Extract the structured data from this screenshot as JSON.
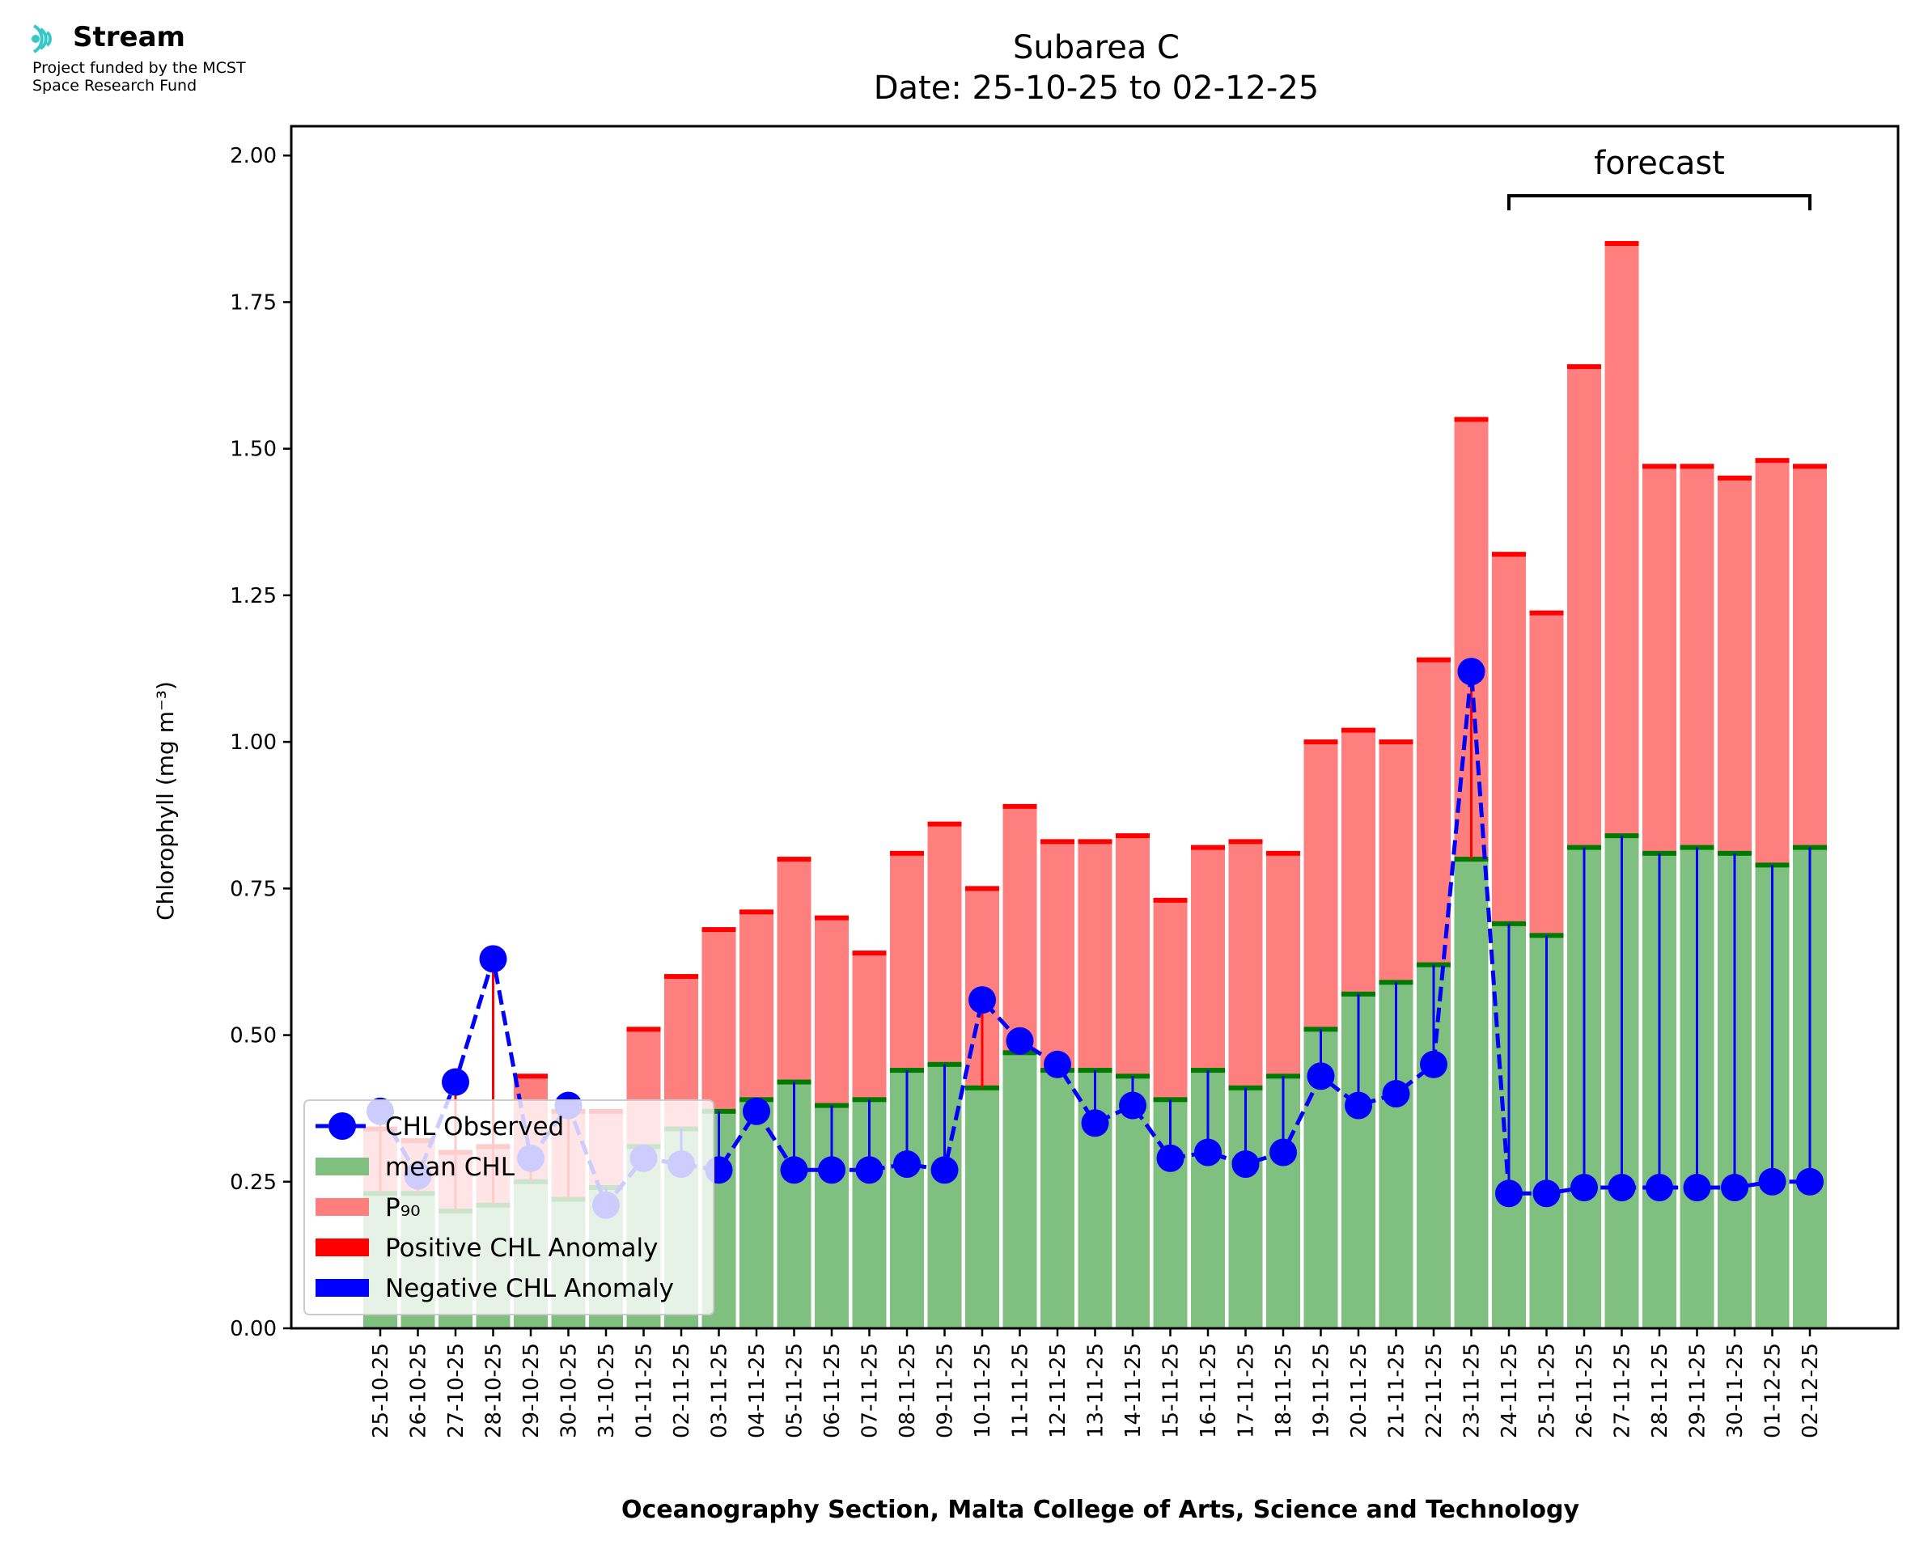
{
  "logo": {
    "brand": "Stream",
    "line1": "Project funded by the MCST",
    "line2": "Space Research Fund"
  },
  "chart_data": {
    "type": "bar",
    "title": "Subarea C",
    "subtitle": "Date: 25-10-25 to 02-12-25",
    "xlabel": "Oceanography Section, Malta College of Arts, Science and Technology",
    "ylabel": "Chlorophyll (mg m⁻³)",
    "ylim": [
      0,
      2.05
    ],
    "yticks": [
      0.0,
      0.25,
      0.5,
      0.75,
      1.0,
      1.25,
      1.5,
      1.75,
      2.0
    ],
    "ytick_labels": [
      "0.00",
      "0.25",
      "0.50",
      "0.75",
      "1.00",
      "1.25",
      "1.50",
      "1.75",
      "2.00"
    ],
    "grid": false,
    "legend_position": "lower-left",
    "annotation": {
      "text": "forecast",
      "from": "24-11-25",
      "to": "02-12-25"
    },
    "categories": [
      "25-10-25",
      "26-10-25",
      "27-10-25",
      "28-10-25",
      "29-10-25",
      "30-10-25",
      "31-10-25",
      "01-11-25",
      "02-11-25",
      "03-11-25",
      "04-11-25",
      "05-11-25",
      "06-11-25",
      "07-11-25",
      "08-11-25",
      "09-11-25",
      "10-11-25",
      "11-11-25",
      "12-11-25",
      "13-11-25",
      "14-11-25",
      "15-11-25",
      "16-11-25",
      "17-11-25",
      "18-11-25",
      "19-11-25",
      "20-11-25",
      "21-11-25",
      "22-11-25",
      "23-11-25",
      "24-11-25",
      "25-11-25",
      "26-11-25",
      "27-11-25",
      "28-11-25",
      "29-11-25",
      "30-11-25",
      "01-12-25",
      "02-12-25"
    ],
    "series": [
      {
        "name": "mean CHL",
        "kind": "bar",
        "color": "#7fbf7f",
        "edge_color": "#007a00",
        "values": [
          0.23,
          0.23,
          0.2,
          0.21,
          0.25,
          0.22,
          0.24,
          0.31,
          0.34,
          0.37,
          0.39,
          0.42,
          0.38,
          0.39,
          0.44,
          0.45,
          0.41,
          0.47,
          0.44,
          0.44,
          0.43,
          0.39,
          0.44,
          0.41,
          0.43,
          0.51,
          0.57,
          0.59,
          0.62,
          0.8,
          0.69,
          0.67,
          0.82,
          0.84,
          0.81,
          0.82,
          0.81,
          0.79,
          0.82
        ]
      },
      {
        "name": "P₉₀",
        "kind": "bar",
        "color": "#ff7f7f",
        "edge_color": "#ff0000",
        "values": [
          0.34,
          0.32,
          0.3,
          0.31,
          0.43,
          0.37,
          0.37,
          0.51,
          0.6,
          0.68,
          0.71,
          0.8,
          0.7,
          0.64,
          0.81,
          0.86,
          0.75,
          0.89,
          0.83,
          0.83,
          0.84,
          0.73,
          0.82,
          0.83,
          0.81,
          1.0,
          1.02,
          1.0,
          1.14,
          1.55,
          1.32,
          1.22,
          1.64,
          1.85,
          1.47,
          1.47,
          1.45,
          1.48,
          1.47
        ]
      },
      {
        "name": "CHL Observed",
        "kind": "line",
        "color": "#0000ff",
        "values": [
          0.37,
          0.26,
          0.42,
          0.63,
          0.29,
          0.38,
          0.21,
          0.29,
          0.28,
          0.27,
          0.37,
          0.27,
          0.27,
          0.27,
          0.28,
          0.27,
          0.56,
          0.49,
          0.45,
          0.35,
          0.38,
          0.29,
          0.3,
          0.28,
          0.3,
          0.43,
          0.38,
          0.4,
          0.45,
          1.12,
          0.23,
          0.23,
          0.24,
          0.24,
          0.24,
          0.24,
          0.24,
          0.25,
          0.25
        ]
      }
    ],
    "legend": [
      {
        "label": "CHL Observed",
        "kind": "line",
        "color": "#0000ff"
      },
      {
        "label": "mean CHL",
        "kind": "patch",
        "color": "#7fbf7f"
      },
      {
        "label": "P₉₀",
        "kind": "patch",
        "color": "#ff7f7f"
      },
      {
        "label": "Positive CHL Anomaly",
        "kind": "patch",
        "color": "#ff0000"
      },
      {
        "label": "Negative CHL Anomaly",
        "kind": "patch",
        "color": "#0000ff"
      }
    ]
  }
}
